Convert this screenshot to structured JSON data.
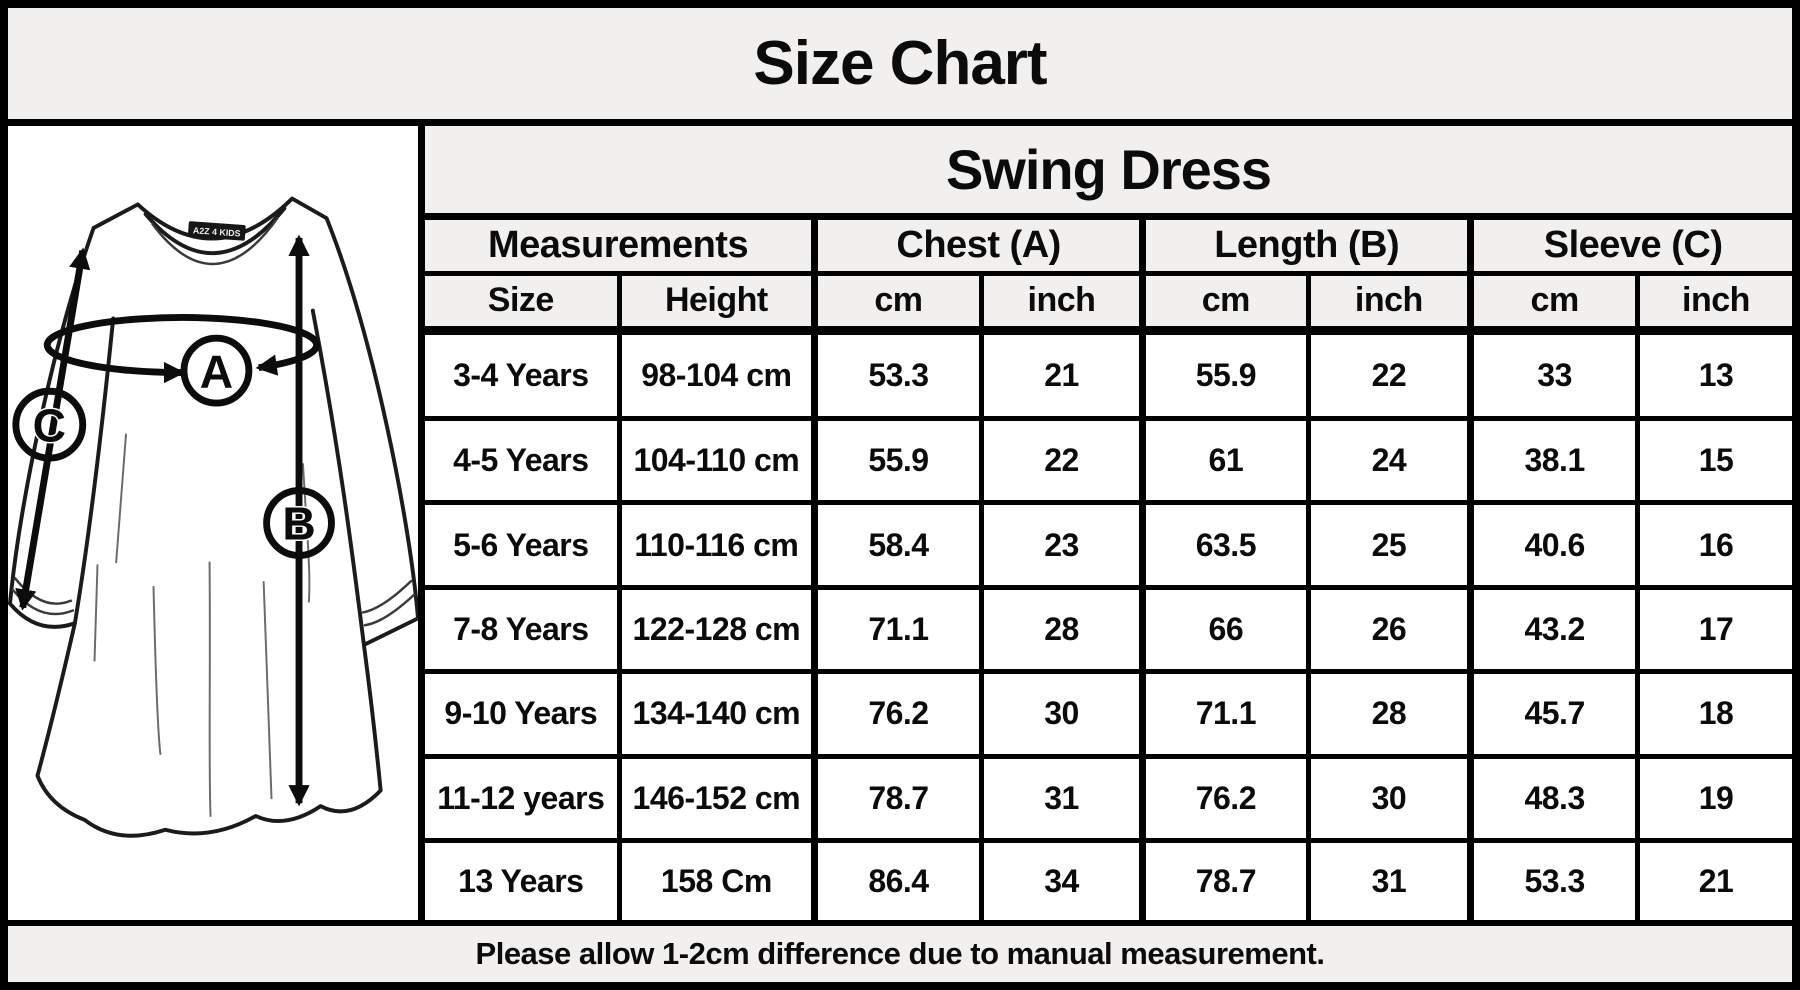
{
  "title": "Size Chart",
  "chart_data": {
    "type": "table",
    "title": "Size Chart",
    "subtitle": "Swing Dress",
    "column_groups": [
      {
        "label": "Measurements",
        "span": 2
      },
      {
        "label": "Chest (A)",
        "span": 2
      },
      {
        "label": "Length (B)",
        "span": 2
      },
      {
        "label": "Sleeve (C)",
        "span": 2
      }
    ],
    "columns": [
      "Size",
      "Height",
      "cm",
      "inch",
      "cm",
      "inch",
      "cm",
      "inch"
    ],
    "rows": [
      [
        "3-4 Years",
        "98-104 cm",
        "53.3",
        "21",
        "55.9",
        "22",
        "33",
        "13"
      ],
      [
        "4-5 Years",
        "104-110 cm",
        "55.9",
        "22",
        "61",
        "24",
        "38.1",
        "15"
      ],
      [
        "5-6 Years",
        "110-116 cm",
        "58.4",
        "23",
        "63.5",
        "25",
        "40.6",
        "16"
      ],
      [
        "7-8 Years",
        "122-128 cm",
        "71.1",
        "28",
        "66",
        "26",
        "43.2",
        "17"
      ],
      [
        "9-10 Years",
        "134-140 cm",
        "76.2",
        "30",
        "71.1",
        "28",
        "45.7",
        "18"
      ],
      [
        "11-12 years",
        "146-152 cm",
        "78.7",
        "31",
        "76.2",
        "30",
        "48.3",
        "19"
      ],
      [
        "13 Years",
        "158 Cm",
        "86.4",
        "34",
        "78.7",
        "31",
        "53.3",
        "21"
      ]
    ],
    "note": "Please allow 1-2cm difference due to manual measurement."
  },
  "diagram": {
    "label_chest": "A",
    "label_length": "B",
    "label_sleeve": "C",
    "brand_tag": "A2Z 4 KIDS"
  },
  "footer_note": "Please allow 1-2cm difference due to manual measurement.",
  "colors": {
    "border": "#000000",
    "header_bg": "#f1f0ef",
    "cell_bg": "#ffffff",
    "ink": "#0b0b0b"
  }
}
